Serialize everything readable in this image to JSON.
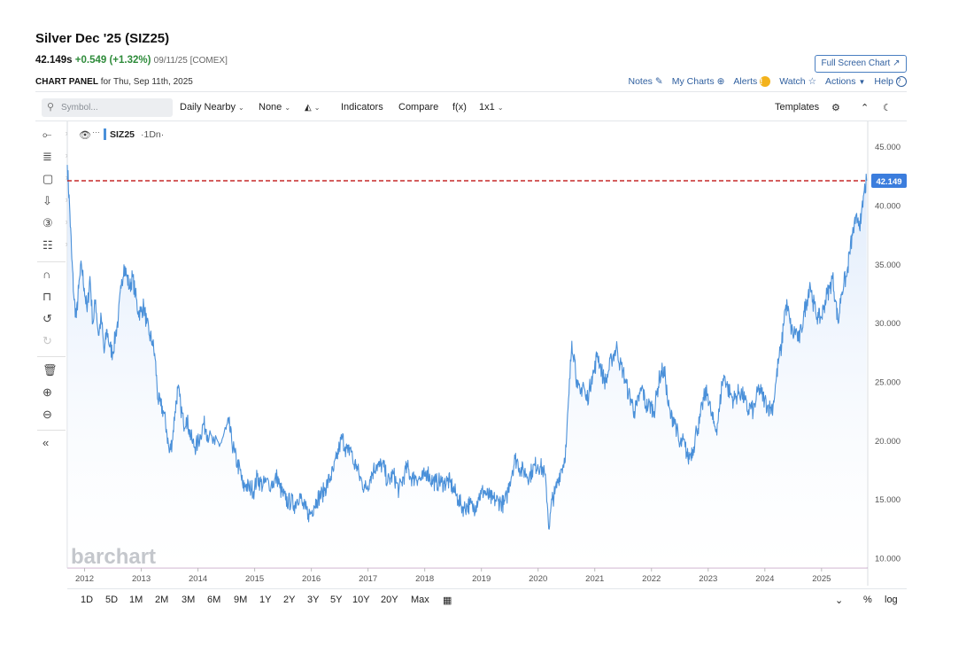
{
  "header": {
    "title": "Silver Dec '25 (SIZ25)",
    "last": "42.149s",
    "change": "+0.549 (+1.32%)",
    "meta": "09/11/25 [COMEX]",
    "full_screen": "Full Screen Chart ↗",
    "panel_label": "CHART PANEL",
    "panel_date": "for Thu, Sep 11th, 2025"
  },
  "links": {
    "notes": "Notes",
    "my_charts": "My Charts",
    "alerts": "Alerts",
    "alerts_badge": "!",
    "watch": "Watch",
    "actions": "Actions",
    "help": "Help",
    "help_badge": "?"
  },
  "toolbar": {
    "symbol_placeholder": "Symbol...",
    "daily_nearby": "Daily Nearby",
    "none": "None",
    "indicators": "Indicators",
    "compare": "Compare",
    "fx": "f(x)",
    "layout": "1x1",
    "templates": "Templates"
  },
  "legend": {
    "symbol": "SIZ25",
    "interval": "·1Dn·"
  },
  "watermark": "barchart",
  "ranges": [
    "1D",
    "5D",
    "1M",
    "2M",
    "3M",
    "6M",
    "9M",
    "1Y",
    "2Y",
    "3Y",
    "5Y",
    "10Y",
    "20Y",
    "Max"
  ],
  "bottom_right": {
    "percent": "%",
    "log": "log"
  },
  "colors": {
    "line": "#4a90d9",
    "fill": "#dce9fb",
    "last_line": "#c62828",
    "last_badge": "#3b7ddd",
    "change": "#2e8b3a"
  },
  "chart_data": {
    "type": "area",
    "title": "",
    "xlabel": "",
    "ylabel": "",
    "x_ticks": [
      "2012",
      "2013",
      "2014",
      "2015",
      "2016",
      "2017",
      "2018",
      "2019",
      "2020",
      "2021",
      "2022",
      "2023",
      "2024",
      "2025"
    ],
    "y_ticks": [
      "45.000",
      "40.000",
      "35.000",
      "30.000",
      "25.000",
      "20.000",
      "15.000",
      "10.000"
    ],
    "ylim": [
      9.2,
      47.2
    ],
    "xlim": [
      2011.7,
      2025.82
    ],
    "last_value": 42.149,
    "last_value_label": "42.149",
    "series": [
      {
        "points": [
          [
            2011.7,
            43.5
          ],
          [
            2011.74,
            40
          ],
          [
            2011.78,
            35.5
          ],
          [
            2011.82,
            32
          ],
          [
            2011.86,
            30.5
          ],
          [
            2011.9,
            33
          ],
          [
            2011.95,
            35
          ],
          [
            2012.0,
            33
          ],
          [
            2012.05,
            31
          ],
          [
            2012.1,
            34
          ],
          [
            2012.15,
            30
          ],
          [
            2012.2,
            32
          ],
          [
            2012.25,
            29
          ],
          [
            2012.3,
            30.5
          ],
          [
            2012.35,
            27.5
          ],
          [
            2012.4,
            29.5
          ],
          [
            2012.45,
            28
          ],
          [
            2012.5,
            27.5
          ],
          [
            2012.55,
            29
          ],
          [
            2012.6,
            30.5
          ],
          [
            2012.65,
            33
          ],
          [
            2012.7,
            35
          ],
          [
            2012.75,
            34
          ],
          [
            2012.8,
            33
          ],
          [
            2012.85,
            34
          ],
          [
            2012.9,
            32.5
          ],
          [
            2012.95,
            31
          ],
          [
            2013.0,
            31
          ],
          [
            2013.05,
            31.5
          ],
          [
            2013.1,
            30
          ],
          [
            2013.15,
            29
          ],
          [
            2013.2,
            28.5
          ],
          [
            2013.25,
            27
          ],
          [
            2013.3,
            23.5
          ],
          [
            2013.35,
            23
          ],
          [
            2013.4,
            22.5
          ],
          [
            2013.45,
            21
          ],
          [
            2013.5,
            19
          ],
          [
            2013.55,
            20
          ],
          [
            2013.6,
            22.5
          ],
          [
            2013.65,
            24.5
          ],
          [
            2013.7,
            23
          ],
          [
            2013.75,
            21.5
          ],
          [
            2013.8,
            22
          ],
          [
            2013.85,
            21
          ],
          [
            2013.9,
            20
          ],
          [
            2013.95,
            19.5
          ],
          [
            2014.0,
            19.8
          ],
          [
            2014.05,
            20.5
          ],
          [
            2014.1,
            21.5
          ],
          [
            2014.15,
            21
          ],
          [
            2014.2,
            20.3
          ],
          [
            2014.3,
            19.7
          ],
          [
            2014.4,
            19.8
          ],
          [
            2014.5,
            21
          ],
          [
            2014.55,
            21.5
          ],
          [
            2014.6,
            20
          ],
          [
            2014.65,
            19
          ],
          [
            2014.7,
            18
          ],
          [
            2014.75,
            17.5
          ],
          [
            2014.8,
            16
          ],
          [
            2014.85,
            16.3
          ],
          [
            2014.9,
            16
          ],
          [
            2014.95,
            16
          ],
          [
            2015.0,
            15.8
          ],
          [
            2015.05,
            17
          ],
          [
            2015.1,
            16.5
          ],
          [
            2015.15,
            16.2
          ],
          [
            2015.2,
            16.5
          ],
          [
            2015.3,
            16.4
          ],
          [
            2015.35,
            16.5
          ],
          [
            2015.4,
            17
          ],
          [
            2015.45,
            16
          ],
          [
            2015.5,
            15.5
          ],
          [
            2015.55,
            15
          ],
          [
            2015.6,
            14.8
          ],
          [
            2015.65,
            14.9
          ],
          [
            2015.7,
            14.5
          ],
          [
            2015.75,
            15
          ],
          [
            2015.8,
            15.5
          ],
          [
            2015.85,
            14.5
          ],
          [
            2015.9,
            14.2
          ],
          [
            2015.95,
            13.8
          ],
          [
            2016.0,
            13.9
          ],
          [
            2016.05,
            14.5
          ],
          [
            2016.1,
            15
          ],
          [
            2016.15,
            15.3
          ],
          [
            2016.2,
            15.5
          ],
          [
            2016.25,
            16
          ],
          [
            2016.3,
            16.5
          ],
          [
            2016.35,
            17
          ],
          [
            2016.4,
            17.5
          ],
          [
            2016.45,
            18.5
          ],
          [
            2016.5,
            19.5
          ],
          [
            2016.55,
            20.3
          ],
          [
            2016.6,
            19.5
          ],
          [
            2016.65,
            19
          ],
          [
            2016.7,
            19.5
          ],
          [
            2016.75,
            18
          ],
          [
            2016.8,
            18
          ],
          [
            2016.85,
            17
          ],
          [
            2016.9,
            16.5
          ],
          [
            2016.95,
            16
          ],
          [
            2017.0,
            16.2
          ],
          [
            2017.05,
            17
          ],
          [
            2017.1,
            17.5
          ],
          [
            2017.15,
            18
          ],
          [
            2017.2,
            17.8
          ],
          [
            2017.25,
            18
          ],
          [
            2017.3,
            17.5
          ],
          [
            2017.35,
            16.5
          ],
          [
            2017.4,
            16.8
          ],
          [
            2017.45,
            17.2
          ],
          [
            2017.5,
            16.5
          ],
          [
            2017.55,
            15.8
          ],
          [
            2017.6,
            16.5
          ],
          [
            2017.65,
            17.2
          ],
          [
            2017.7,
            17.8
          ],
          [
            2017.75,
            17
          ],
          [
            2017.8,
            16.8
          ],
          [
            2017.85,
            17
          ],
          [
            2017.9,
            16.8
          ],
          [
            2017.95,
            16.7
          ],
          [
            2018.0,
            17
          ],
          [
            2018.05,
            17.5
          ],
          [
            2018.1,
            16.8
          ],
          [
            2018.15,
            16.6
          ],
          [
            2018.2,
            16.5
          ],
          [
            2018.25,
            16.5
          ],
          [
            2018.3,
            16.5
          ],
          [
            2018.35,
            16.4
          ],
          [
            2018.4,
            16.6
          ],
          [
            2018.45,
            16.5
          ],
          [
            2018.5,
            16
          ],
          [
            2018.55,
            15.5
          ],
          [
            2018.6,
            15
          ],
          [
            2018.65,
            14.5
          ],
          [
            2018.7,
            14.3
          ],
          [
            2018.75,
            14.5
          ],
          [
            2018.8,
            14.6
          ],
          [
            2018.85,
            14.3
          ],
          [
            2018.9,
            14.5
          ],
          [
            2018.95,
            15.2
          ],
          [
            2019.0,
            15.5
          ],
          [
            2019.05,
            15.8
          ],
          [
            2019.1,
            15.4
          ],
          [
            2019.15,
            15.2
          ],
          [
            2019.2,
            15
          ],
          [
            2019.25,
            15
          ],
          [
            2019.3,
            14.9
          ],
          [
            2019.35,
            14.8
          ],
          [
            2019.4,
            14.6
          ],
          [
            2019.45,
            15.2
          ],
          [
            2019.5,
            16.5
          ],
          [
            2019.55,
            17.5
          ],
          [
            2019.6,
            18.5
          ],
          [
            2019.65,
            18.2
          ],
          [
            2019.7,
            17.5
          ],
          [
            2019.75,
            17.5
          ],
          [
            2019.8,
            17.2
          ],
          [
            2019.85,
            17
          ],
          [
            2019.9,
            17.5
          ],
          [
            2019.95,
            17.9
          ],
          [
            2020.0,
            18
          ],
          [
            2020.05,
            17.8
          ],
          [
            2020.1,
            17.5
          ],
          [
            2020.15,
            16
          ],
          [
            2020.2,
            12.5
          ],
          [
            2020.25,
            15
          ],
          [
            2020.3,
            15.5
          ],
          [
            2020.35,
            16.5
          ],
          [
            2020.4,
            17.5
          ],
          [
            2020.45,
            18
          ],
          [
            2020.5,
            19.5
          ],
          [
            2020.55,
            24
          ],
          [
            2020.6,
            28.5
          ],
          [
            2020.65,
            27
          ],
          [
            2020.7,
            24.5
          ],
          [
            2020.75,
            24
          ],
          [
            2020.8,
            25
          ],
          [
            2020.85,
            23.5
          ],
          [
            2020.9,
            24
          ],
          [
            2020.95,
            25.5
          ],
          [
            2021.0,
            26
          ],
          [
            2021.05,
            27.5
          ],
          [
            2021.1,
            26.5
          ],
          [
            2021.15,
            25.5
          ],
          [
            2021.2,
            25
          ],
          [
            2021.25,
            26
          ],
          [
            2021.3,
            27
          ],
          [
            2021.35,
            27.5
          ],
          [
            2021.4,
            28
          ],
          [
            2021.45,
            26.5
          ],
          [
            2021.5,
            26
          ],
          [
            2021.55,
            25
          ],
          [
            2021.6,
            24
          ],
          [
            2021.65,
            23.5
          ],
          [
            2021.7,
            22.5
          ],
          [
            2021.75,
            23
          ],
          [
            2021.8,
            24
          ],
          [
            2021.85,
            24.5
          ],
          [
            2021.9,
            23
          ],
          [
            2021.95,
            23
          ],
          [
            2022.0,
            23
          ],
          [
            2022.05,
            22.5
          ],
          [
            2022.1,
            24
          ],
          [
            2022.15,
            25.5
          ],
          [
            2022.2,
            26
          ],
          [
            2022.25,
            25.5
          ],
          [
            2022.3,
            23
          ],
          [
            2022.35,
            22
          ],
          [
            2022.4,
            22
          ],
          [
            2022.45,
            21
          ],
          [
            2022.5,
            19.5
          ],
          [
            2022.55,
            20
          ],
          [
            2022.6,
            19.5
          ],
          [
            2022.65,
            18.5
          ],
          [
            2022.7,
            19
          ],
          [
            2022.75,
            19.5
          ],
          [
            2022.8,
            21
          ],
          [
            2022.85,
            21.5
          ],
          [
            2022.9,
            23
          ],
          [
            2022.95,
            24
          ],
          [
            2023.0,
            24
          ],
          [
            2023.05,
            22.5
          ],
          [
            2023.1,
            21.5
          ],
          [
            2023.15,
            21
          ],
          [
            2023.2,
            22.5
          ],
          [
            2023.25,
            25
          ],
          [
            2023.3,
            25.5
          ],
          [
            2023.35,
            24.5
          ],
          [
            2023.4,
            24
          ],
          [
            2023.45,
            23.5
          ],
          [
            2023.5,
            23.8
          ],
          [
            2023.55,
            24.2
          ],
          [
            2023.6,
            24
          ],
          [
            2023.65,
            23.5
          ],
          [
            2023.7,
            22.5
          ],
          [
            2023.75,
            23
          ],
          [
            2023.8,
            22.5
          ],
          [
            2023.85,
            23.5
          ],
          [
            2023.9,
            24.5
          ],
          [
            2023.95,
            24
          ],
          [
            2024.0,
            23.5
          ],
          [
            2024.05,
            23
          ],
          [
            2024.1,
            22.8
          ],
          [
            2024.15,
            23
          ],
          [
            2024.2,
            25
          ],
          [
            2024.25,
            27
          ],
          [
            2024.3,
            28
          ],
          [
            2024.35,
            31
          ],
          [
            2024.4,
            31.5
          ],
          [
            2024.45,
            30
          ],
          [
            2024.5,
            29
          ],
          [
            2024.55,
            29.5
          ],
          [
            2024.6,
            28.5
          ],
          [
            2024.65,
            29.5
          ],
          [
            2024.7,
            31
          ],
          [
            2024.75,
            32
          ],
          [
            2024.8,
            33.5
          ],
          [
            2024.85,
            32
          ],
          [
            2024.9,
            31
          ],
          [
            2024.95,
            30.5
          ],
          [
            2025.0,
            30.5
          ],
          [
            2025.05,
            31.5
          ],
          [
            2025.1,
            32.5
          ],
          [
            2025.15,
            33
          ],
          [
            2025.2,
            34
          ],
          [
            2025.25,
            32
          ],
          [
            2025.3,
            30
          ],
          [
            2025.35,
            32.5
          ],
          [
            2025.4,
            33.5
          ],
          [
            2025.45,
            34
          ],
          [
            2025.5,
            36
          ],
          [
            2025.55,
            37.5
          ],
          [
            2025.6,
            38.5
          ],
          [
            2025.65,
            39
          ],
          [
            2025.7,
            38.5
          ],
          [
            2025.75,
            41
          ],
          [
            2025.8,
            42.149
          ]
        ]
      }
    ]
  }
}
